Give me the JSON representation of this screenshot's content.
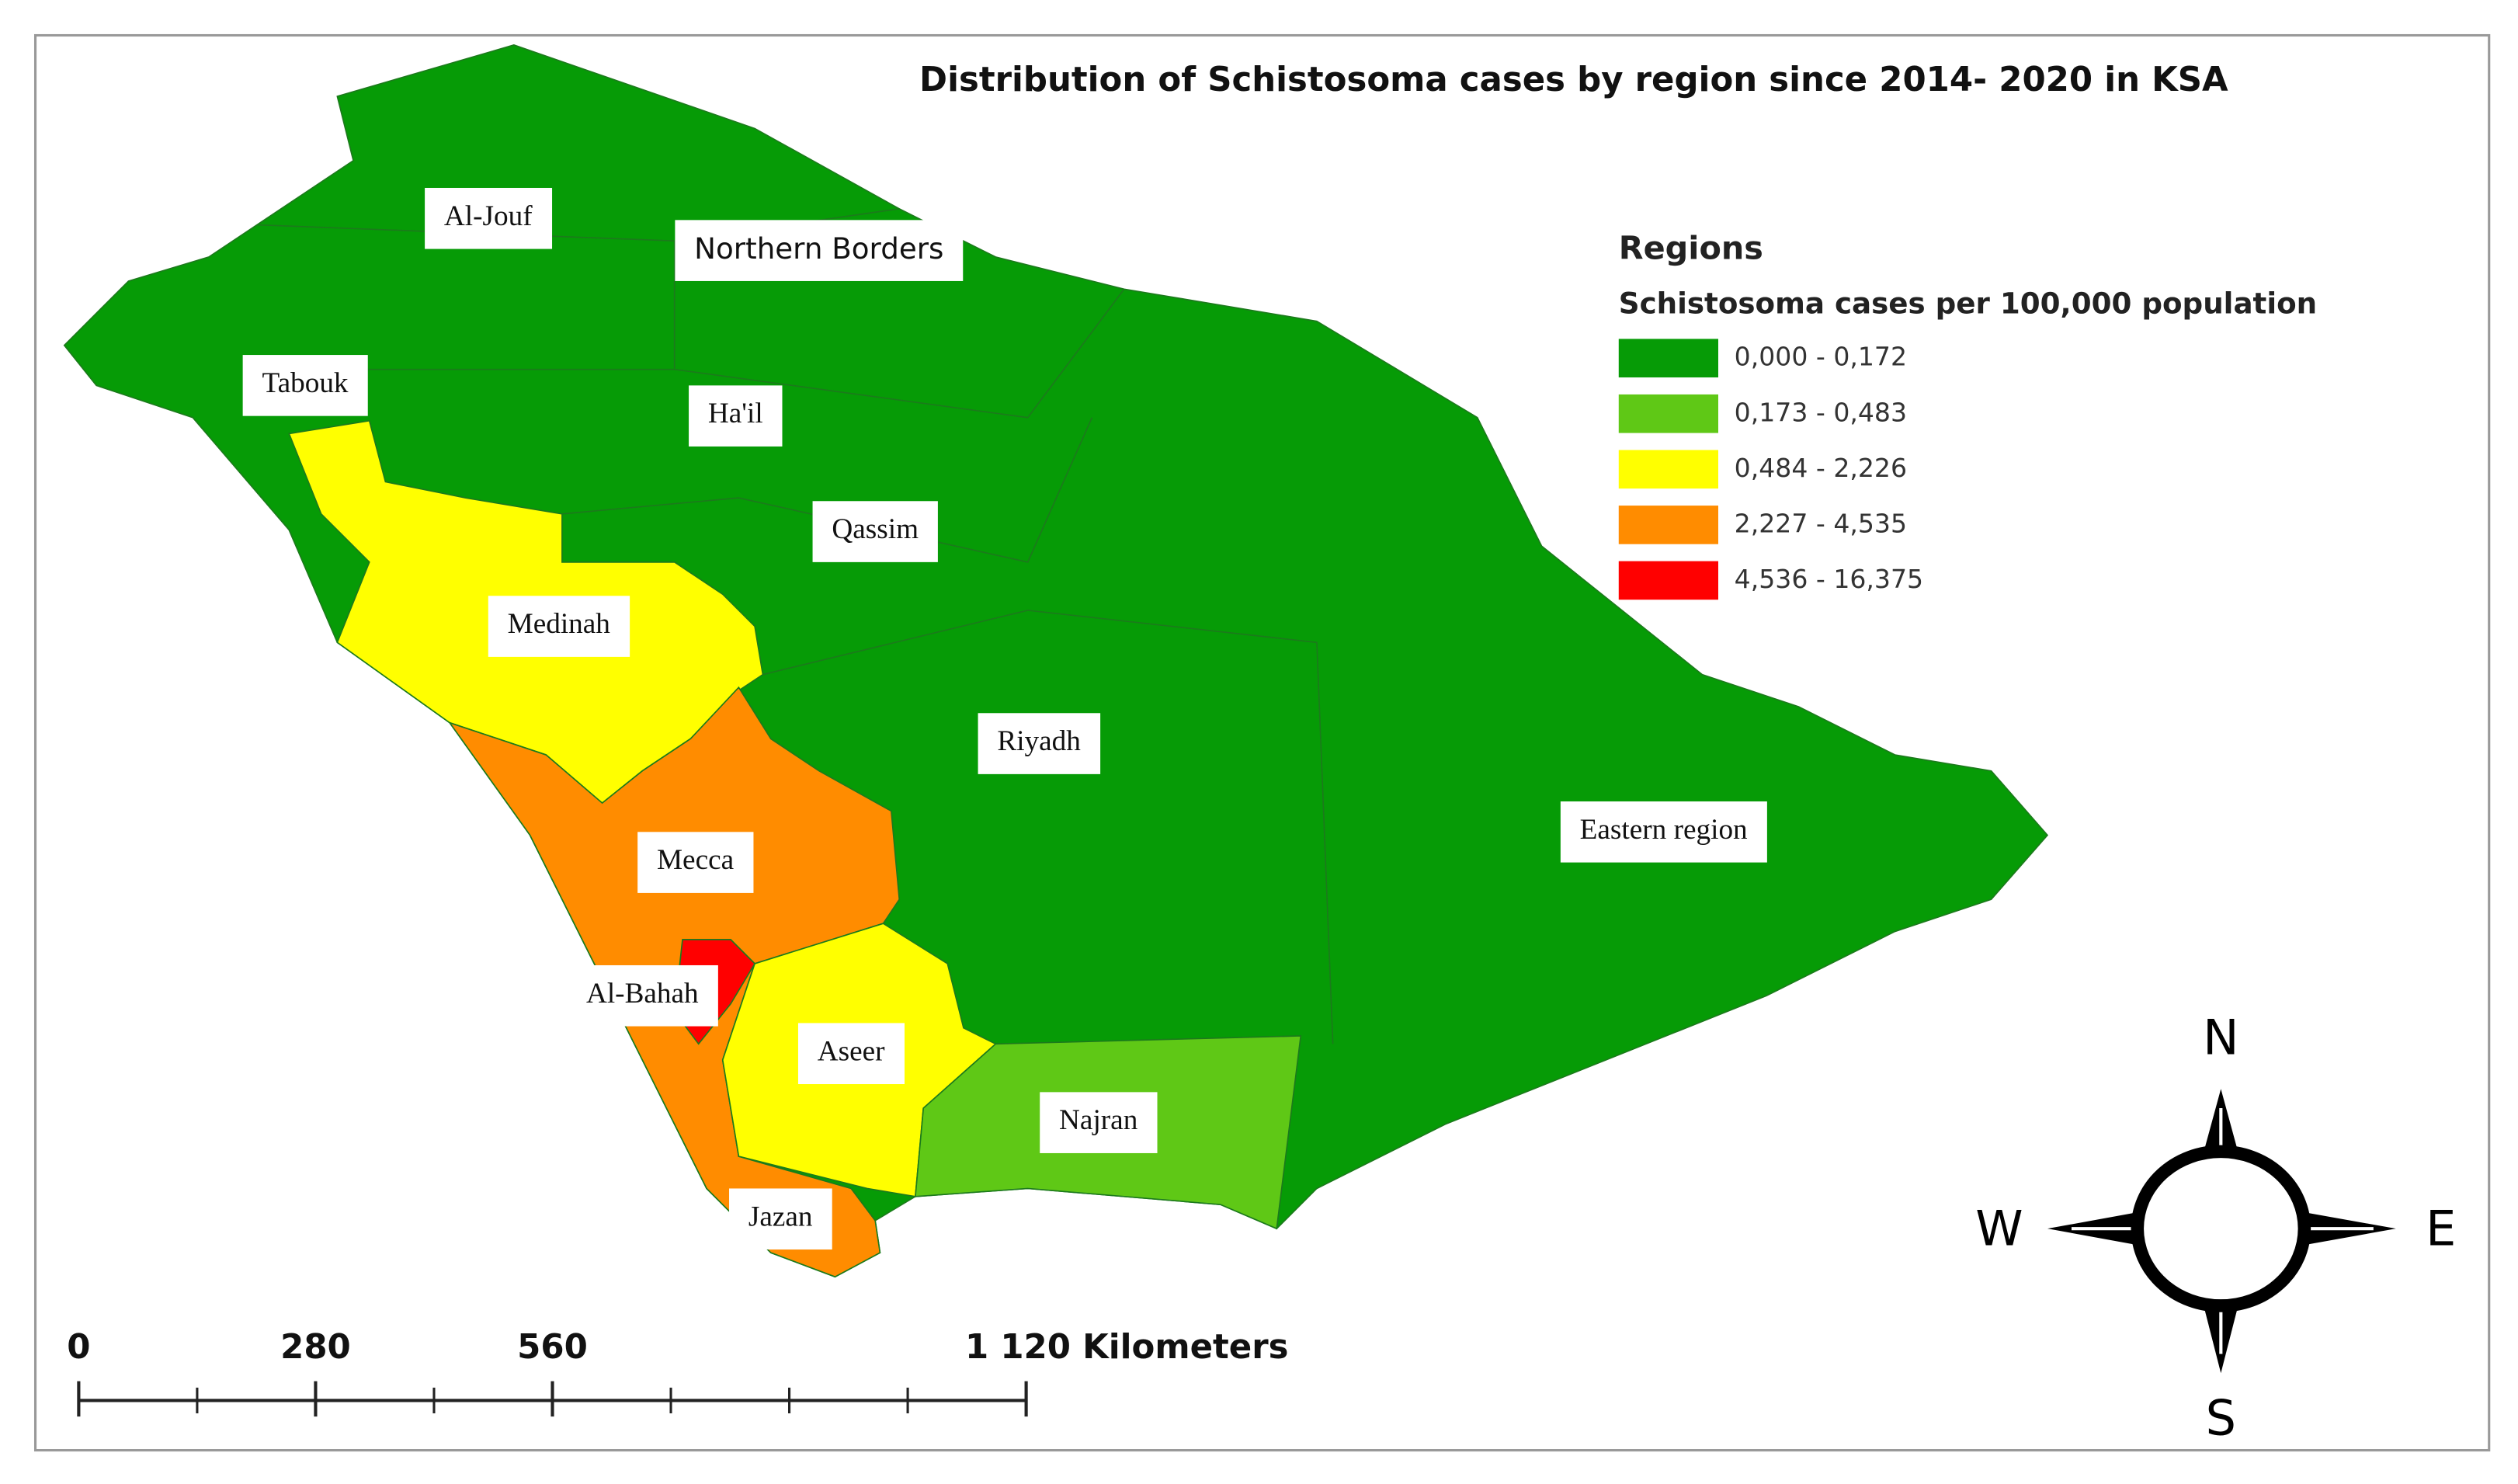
{
  "title": "Distribution of Schistosoma cases by region since 2014- 2020 in KSA",
  "legend": {
    "title": "Regions",
    "subtitle": "Schistosoma cases per 100,000 population",
    "classes": [
      {
        "label": "0,000 - 0,172",
        "color": "#069b06"
      },
      {
        "label": "0,173 - 0,483",
        "color": "#5fc816"
      },
      {
        "label": "0,484 - 2,226",
        "color": "#ffff00"
      },
      {
        "label": "2,227 - 4,535",
        "color": "#ff8c00"
      },
      {
        "label": "4,536 - 16,375",
        "color": "#ff0000"
      }
    ]
  },
  "regions": [
    "Al-Jouf",
    "Northern Borders",
    "Tabouk",
    "Ha'il",
    "Qassim",
    "Medinah",
    "Riyadh",
    "Eastern region",
    "Mecca",
    "Al-Bahah",
    "Aseer",
    "Najran",
    "Jazan"
  ],
  "scale_bar": {
    "ticks": [
      0,
      280,
      560,
      {
        "value": 1120,
        "label": "1 120 Kilometers"
      }
    ]
  },
  "compass": {
    "north": "N",
    "south": "S",
    "west": "W",
    "east": "E"
  }
}
